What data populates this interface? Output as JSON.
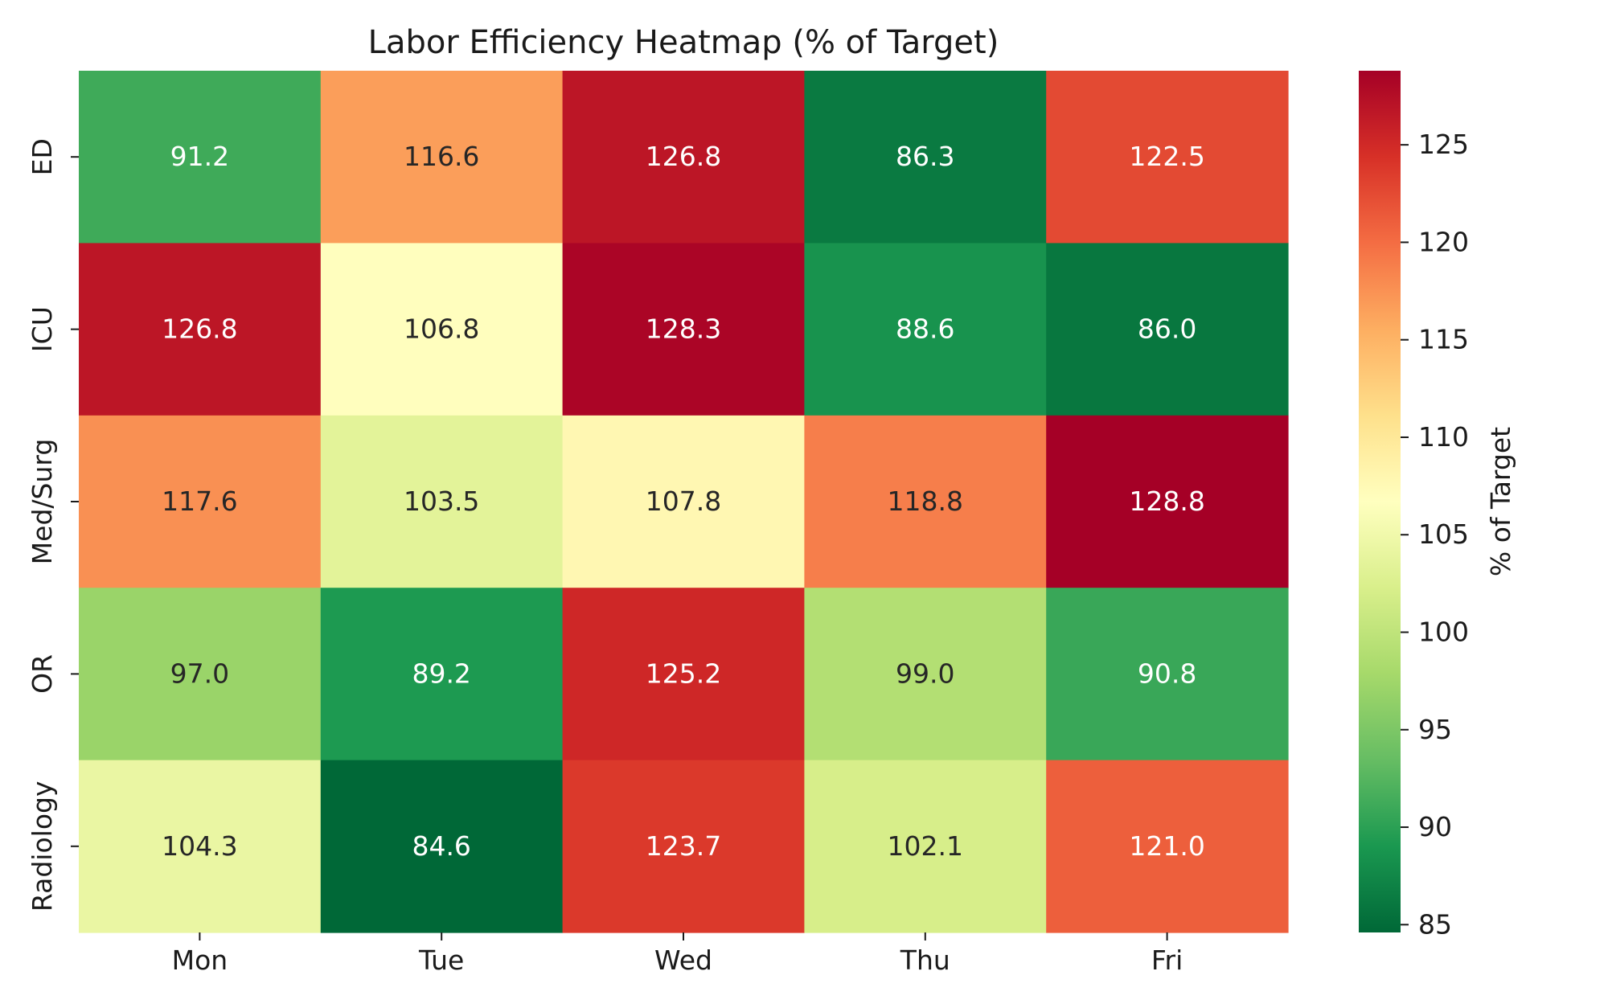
{
  "chart_data": {
    "type": "heatmap",
    "title": "Labor Efficiency Heatmap (% of Target)",
    "xlabel": "",
    "ylabel": "",
    "x_categories": [
      "Mon",
      "Tue",
      "Wed",
      "Thu",
      "Fri"
    ],
    "y_categories": [
      "ED",
      "ICU",
      "Med/Surg",
      "OR",
      "Radiology"
    ],
    "values": [
      [
        91.2,
        116.6,
        126.8,
        86.3,
        122.5
      ],
      [
        126.8,
        106.8,
        128.3,
        88.6,
        86.0
      ],
      [
        117.6,
        103.5,
        107.8,
        118.8,
        128.8
      ],
      [
        97.0,
        89.2,
        125.2,
        99.0,
        90.8
      ],
      [
        104.3,
        84.6,
        123.7,
        102.1,
        121.0
      ]
    ],
    "value_format": "0.1f",
    "colormap": "RdYlGn_r",
    "colorbar": {
      "label": "% of Target",
      "range": [
        84.6,
        128.8
      ],
      "ticks": [
        85,
        90,
        95,
        100,
        105,
        110,
        115,
        120,
        125
      ]
    },
    "grid": false,
    "legend": "colorbar-right"
  }
}
